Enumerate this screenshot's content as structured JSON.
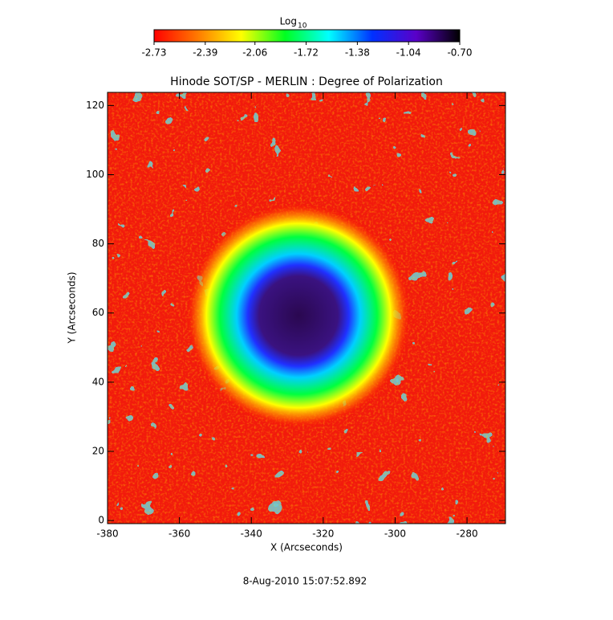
{
  "chart_data": {
    "type": "image",
    "title": "Hinode SOT/SP - MERLIN : Degree of Polarization",
    "x_label": "X (Arcseconds)",
    "y_label": "Y (Arcseconds)",
    "footer": "8-Aug-2010 15:07:52.892",
    "xlim": [
      -380,
      -269.3
    ],
    "xticks": [
      -380,
      -360,
      -340,
      -320,
      -300,
      -280
    ],
    "ylim": [
      -0.9,
      123.8
    ],
    "yticks": [
      0,
      20,
      40,
      60,
      80,
      100,
      120
    ],
    "colorbar": {
      "label": "Log",
      "label_subscript": "10",
      "lim": [
        -2.73,
        -0.7
      ],
      "ticks": [
        -2.73,
        -2.39,
        -2.06,
        -1.72,
        -1.38,
        -1.04,
        {
          "value": -0.7,
          "label": "-0.70"
        }
      ],
      "colormap": [
        "#ff0000",
        "#ff7a00",
        "#ffff00",
        "#00ff20",
        "#00ffff",
        "#0030ff",
        "#5a00c8",
        "#000000"
      ]
    }
  }
}
